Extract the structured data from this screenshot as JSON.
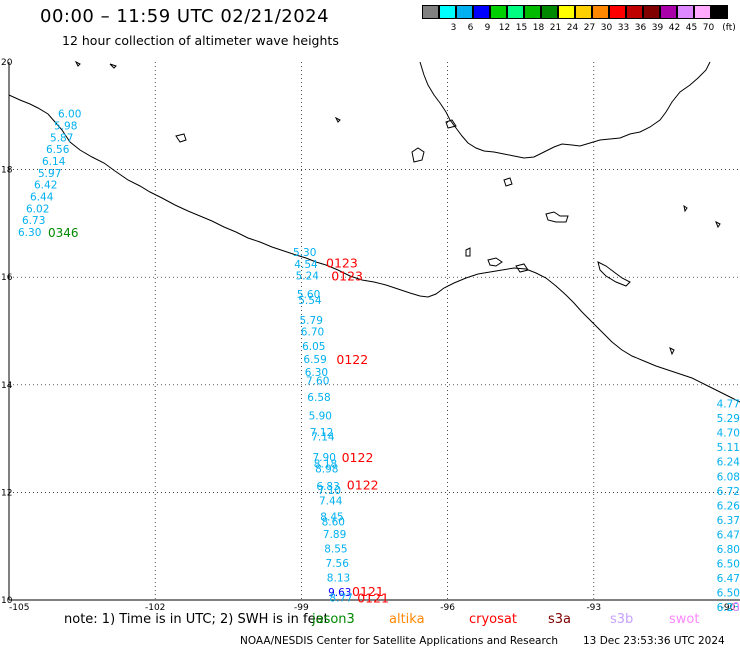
{
  "title": "00:00 – 11:59 UTC 02/21/2024",
  "subtitle": "12 hour collection of altimeter wave heights",
  "legend": {
    "unit": "(ft)",
    "bins": [
      {
        "label": "",
        "color": "#808080"
      },
      {
        "label": "3",
        "color": "#00ffff"
      },
      {
        "label": "6",
        "color": "#00b0f0"
      },
      {
        "label": "9",
        "color": "#0000ff"
      },
      {
        "label": "12",
        "color": "#00d000"
      },
      {
        "label": "15",
        "color": "#00ff80"
      },
      {
        "label": "18",
        "color": "#00bb00"
      },
      {
        "label": "21",
        "color": "#008800"
      },
      {
        "label": "24",
        "color": "#ffff00"
      },
      {
        "label": "27",
        "color": "#ffd000"
      },
      {
        "label": "30",
        "color": "#ff8800"
      },
      {
        "label": "33",
        "color": "#ff0000"
      },
      {
        "label": "36",
        "color": "#c00000"
      },
      {
        "label": "39",
        "color": "#800000"
      },
      {
        "label": "42",
        "color": "#aa00aa"
      },
      {
        "label": "45",
        "color": "#dd88ff"
      },
      {
        "label": "70",
        "color": "#ffaaff"
      },
      {
        "label": "",
        "color": "#000000"
      }
    ]
  },
  "axes": {
    "lat_labels": [
      "20",
      "18",
      "16",
      "14",
      "12",
      "10"
    ],
    "lon_labels": [
      "-105",
      "-102",
      "-99",
      "-96",
      "-93",
      "-90"
    ]
  },
  "note": "note:  1) Time is in UTC;  2) SWH is in feet",
  "satellites": [
    {
      "name": "jason3",
      "color": "#008800"
    },
    {
      "name": "altika",
      "color": "#ff8800"
    },
    {
      "name": "cryosat",
      "color": "#ff0000"
    },
    {
      "name": "s3a",
      "color": "#800000"
    },
    {
      "name": "s3b",
      "color": "#c8a0ff"
    },
    {
      "name": "swot",
      "color": "#ff88ff"
    }
  ],
  "footer_left": "NOAA/NESDIS Center for Satellite Applications and Research",
  "footer_right": "13 Dec 23:53:36 UTC 2024",
  "tracks": {
    "west": {
      "values": [
        {
          "lat": 19.04,
          "v": "6.00"
        },
        {
          "lat": 18.82,
          "v": "5.98"
        },
        {
          "lat": 18.6,
          "v": "5.87"
        },
        {
          "lat": 18.38,
          "v": "6.56"
        },
        {
          "lat": 18.16,
          "v": "6.14"
        },
        {
          "lat": 17.94,
          "v": "5.97"
        },
        {
          "lat": 17.72,
          "v": "6.42"
        },
        {
          "lat": 17.5,
          "v": "6.44"
        },
        {
          "lat": 17.28,
          "v": "6.02"
        },
        {
          "lat": 17.06,
          "v": "6.73"
        },
        {
          "lat": 16.84,
          "v": "6.30"
        }
      ],
      "time": {
        "lat": 16.84,
        "t": "0346"
      }
    },
    "middle": {
      "values": [
        {
          "lat": 16.47,
          "v": "5.30"
        },
        {
          "lat": 16.25,
          "v": "4.54"
        },
        {
          "lat": 16.03,
          "v": "5.24"
        },
        {
          "lat": 15.69,
          "v": "5.60"
        },
        {
          "lat": 15.58,
          "v": "5.54"
        },
        {
          "lat": 15.2,
          "v": "5.79"
        },
        {
          "lat": 14.99,
          "v": "6.70"
        },
        {
          "lat": 14.72,
          "v": "6.05"
        },
        {
          "lat": 14.48,
          "v": "6.59"
        },
        {
          "lat": 14.24,
          "v": "6.30"
        },
        {
          "lat": 14.08,
          "v": "7.60"
        },
        {
          "lat": 13.77,
          "v": "6.58"
        },
        {
          "lat": 13.43,
          "v": "5.90"
        },
        {
          "lat": 13.12,
          "v": "7.12"
        },
        {
          "lat": 13.04,
          "v": "7.14"
        },
        {
          "lat": 12.66,
          "v": "7.90"
        },
        {
          "lat": 12.54,
          "v": "8.18"
        },
        {
          "lat": 12.44,
          "v": "8.98"
        },
        {
          "lat": 12.12,
          "v": "6.83"
        },
        {
          "lat": 12.04,
          "v": "7.10"
        },
        {
          "lat": 11.85,
          "v": "7.44"
        },
        {
          "lat": 11.55,
          "v": "8.45"
        },
        {
          "lat": 11.46,
          "v": "8.60"
        },
        {
          "lat": 11.23,
          "v": "7.89"
        },
        {
          "lat": 10.96,
          "v": "8.55"
        },
        {
          "lat": 10.69,
          "v": "7.56"
        },
        {
          "lat": 10.42,
          "v": "8.13"
        },
        {
          "lat": 10.15,
          "v": "9.63"
        },
        {
          "lat": 10.05,
          "v": "8.77"
        }
      ],
      "times": [
        {
          "lat": 16.27,
          "t": "0123"
        },
        {
          "lat": 16.03,
          "t": "0123"
        },
        {
          "lat": 14.48,
          "t": "0122"
        },
        {
          "lat": 12.66,
          "t": "0122"
        },
        {
          "lat": 12.15,
          "t": "0122"
        },
        {
          "lat": 10.17,
          "t": "0121"
        },
        {
          "lat": 10.05,
          "t": "0121"
        }
      ]
    },
    "east": {
      "values": [
        {
          "lat": 13.65,
          "v": "4.77"
        },
        {
          "lat": 13.38,
          "v": "5.29"
        },
        {
          "lat": 13.11,
          "v": "4.70"
        },
        {
          "lat": 12.84,
          "v": "5.11"
        },
        {
          "lat": 12.57,
          "v": "6.24"
        },
        {
          "lat": 12.3,
          "v": "6.08"
        },
        {
          "lat": 12.03,
          "v": "6.72"
        },
        {
          "lat": 11.76,
          "v": "6.26"
        },
        {
          "lat": 11.49,
          "v": "6.37"
        },
        {
          "lat": 11.22,
          "v": "6.47"
        },
        {
          "lat": 10.95,
          "v": "6.80"
        },
        {
          "lat": 10.68,
          "v": "6.50"
        },
        {
          "lat": 10.41,
          "v": "6.47"
        },
        {
          "lat": 10.14,
          "v": "6.50"
        },
        {
          "lat": 9.87,
          "v": "6.23"
        }
      ],
      "time": {
        "lat": 9.87,
        "t": "0"
      }
    }
  }
}
